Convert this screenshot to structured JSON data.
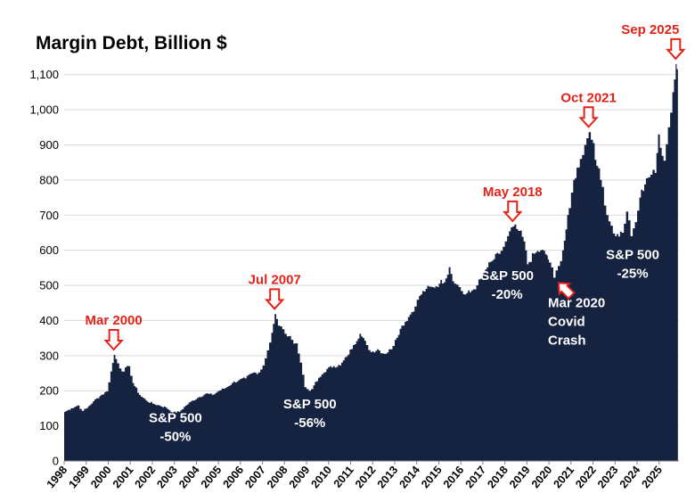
{
  "chart_data": {
    "type": "area",
    "title": "Margin Debt, Billion $",
    "xlabel": "",
    "ylabel": "",
    "xlim": [
      1998,
      2025.9
    ],
    "ylim": [
      0,
      1150
    ],
    "y_ticks": [
      0,
      100,
      200,
      300,
      400,
      500,
      600,
      700,
      800,
      900,
      1000,
      1100
    ],
    "y_tick_labels": [
      "0",
      "100",
      "200",
      "300",
      "400",
      "500",
      "600",
      "700",
      "800",
      "900",
      "1,000",
      "1,100"
    ],
    "x_ticks": [
      1998,
      1999,
      2000,
      2001,
      2002,
      2003,
      2004,
      2005,
      2006,
      2007,
      2008,
      2009,
      2010,
      2011,
      2012,
      2013,
      2014,
      2015,
      2016,
      2017,
      2018,
      2019,
      2020,
      2021,
      2022,
      2023,
      2024,
      2025
    ],
    "x_tick_labels": [
      "1998",
      "1999",
      "2000",
      "2001",
      "2002",
      "2003",
      "2004",
      "2005",
      "2006",
      "2007",
      "2008",
      "2009",
      "2010",
      "2011",
      "2012",
      "2013",
      "2014",
      "2015",
      "2016",
      "2017",
      "2018",
      "2019",
      "2020",
      "2021",
      "2022",
      "2023",
      "2024",
      "2025"
    ],
    "grid": true,
    "colors": {
      "fill": "#162340",
      "grid": "#d9d9d9",
      "peak_annotation": "#e2231a",
      "drawdown_text": "#ffffff",
      "axis": "#7f7f7f"
    },
    "series": [
      {
        "name": "Margin Debt",
        "points": [
          [
            1998.0,
            140
          ],
          [
            1998.3,
            150
          ],
          [
            1998.6,
            158
          ],
          [
            1998.8,
            143
          ],
          [
            1999.0,
            150
          ],
          [
            1999.3,
            170
          ],
          [
            1999.6,
            185
          ],
          [
            1999.9,
            198
          ],
          [
            2000.1,
            255
          ],
          [
            2000.25,
            302
          ],
          [
            2000.4,
            278
          ],
          [
            2000.6,
            255
          ],
          [
            2000.9,
            270
          ],
          [
            2001.1,
            222
          ],
          [
            2001.4,
            188
          ],
          [
            2001.7,
            172
          ],
          [
            2002.0,
            163
          ],
          [
            2002.3,
            158
          ],
          [
            2002.6,
            152
          ],
          [
            2002.9,
            138
          ],
          [
            2003.2,
            140
          ],
          [
            2003.5,
            158
          ],
          [
            2003.8,
            172
          ],
          [
            2004.1,
            182
          ],
          [
            2004.4,
            192
          ],
          [
            2004.7,
            188
          ],
          [
            2005.0,
            200
          ],
          [
            2005.3,
            208
          ],
          [
            2005.6,
            222
          ],
          [
            2005.9,
            230
          ],
          [
            2006.2,
            235
          ],
          [
            2006.5,
            250
          ],
          [
            2006.8,
            252
          ],
          [
            2007.0,
            272
          ],
          [
            2007.2,
            315
          ],
          [
            2007.4,
            365
          ],
          [
            2007.55,
            418
          ],
          [
            2007.7,
            385
          ],
          [
            2007.9,
            375
          ],
          [
            2008.1,
            355
          ],
          [
            2008.3,
            345
          ],
          [
            2008.5,
            335
          ],
          [
            2008.7,
            280
          ],
          [
            2008.9,
            210
          ],
          [
            2009.1,
            200
          ],
          [
            2009.3,
            215
          ],
          [
            2009.6,
            240
          ],
          [
            2009.9,
            262
          ],
          [
            2010.2,
            270
          ],
          [
            2010.5,
            272
          ],
          [
            2010.8,
            298
          ],
          [
            2011.1,
            330
          ],
          [
            2011.4,
            362
          ],
          [
            2011.7,
            330
          ],
          [
            2011.9,
            310
          ],
          [
            2012.2,
            318
          ],
          [
            2012.5,
            305
          ],
          [
            2012.8,
            318
          ],
          [
            2013.0,
            345
          ],
          [
            2013.3,
            385
          ],
          [
            2013.6,
            410
          ],
          [
            2013.9,
            440
          ],
          [
            2014.1,
            470
          ],
          [
            2014.4,
            490
          ],
          [
            2014.7,
            495
          ],
          [
            2015.0,
            505
          ],
          [
            2015.3,
            520
          ],
          [
            2015.45,
            552
          ],
          [
            2015.7,
            505
          ],
          [
            2015.9,
            495
          ],
          [
            2016.1,
            475
          ],
          [
            2016.4,
            480
          ],
          [
            2016.7,
            500
          ],
          [
            2016.9,
            520
          ],
          [
            2017.1,
            545
          ],
          [
            2017.4,
            570
          ],
          [
            2017.7,
            590
          ],
          [
            2017.9,
            610
          ],
          [
            2018.1,
            640
          ],
          [
            2018.35,
            668
          ],
          [
            2018.6,
            655
          ],
          [
            2018.85,
            625
          ],
          [
            2019.0,
            560
          ],
          [
            2019.3,
            590
          ],
          [
            2019.6,
            600
          ],
          [
            2019.9,
            585
          ],
          [
            2020.0,
            565
          ],
          [
            2020.2,
            522
          ],
          [
            2020.4,
            555
          ],
          [
            2020.6,
            600
          ],
          [
            2020.9,
            720
          ],
          [
            2021.1,
            800
          ],
          [
            2021.4,
            860
          ],
          [
            2021.6,
            900
          ],
          [
            2021.8,
            936
          ],
          [
            2022.0,
            905
          ],
          [
            2022.15,
            840
          ],
          [
            2022.4,
            780
          ],
          [
            2022.6,
            700
          ],
          [
            2022.8,
            670
          ],
          [
            2023.0,
            640
          ],
          [
            2023.3,
            650
          ],
          [
            2023.5,
            710
          ],
          [
            2023.7,
            640
          ],
          [
            2023.9,
            680
          ],
          [
            2024.1,
            750
          ],
          [
            2024.4,
            805
          ],
          [
            2024.6,
            815
          ],
          [
            2024.8,
            820
          ],
          [
            2024.95,
            930
          ],
          [
            2025.2,
            855
          ],
          [
            2025.4,
            950
          ],
          [
            2025.6,
            1050
          ],
          [
            2025.75,
            1130
          ],
          [
            2025.85,
            1100
          ]
        ]
      }
    ],
    "annotations": [
      {
        "id": "mar-2000",
        "kind": "peak",
        "text": "Mar 2000",
        "x": 2000.25,
        "y": 302
      },
      {
        "id": "jul-2007",
        "kind": "peak",
        "text": "Jul 2007",
        "x": 2007.55,
        "y": 418
      },
      {
        "id": "may-2018",
        "kind": "peak",
        "text": "May 2018",
        "x": 2018.35,
        "y": 668
      },
      {
        "id": "oct-2021",
        "kind": "peak",
        "text": "Oct 2021",
        "x": 2021.8,
        "y": 936
      },
      {
        "id": "sep-2025",
        "kind": "peak",
        "text": "Sep 2025",
        "x": 2025.75,
        "y": 1130
      },
      {
        "id": "mar-2020",
        "kind": "trough",
        "text_lines": [
          "Mar 2020",
          "Covid",
          "Crash"
        ],
        "x": 2020.2,
        "y": 522
      }
    ],
    "drawdown_labels": [
      {
        "id": "dd-2000",
        "lines": [
          "S&P 500",
          "-50%"
        ],
        "x": 2003.05,
        "y": 110,
        "color": "#ffffff"
      },
      {
        "id": "dd-2007",
        "lines": [
          "S&P 500",
          "-56%"
        ],
        "x": 2009.15,
        "y": 150,
        "color": "#ffffff"
      },
      {
        "id": "dd-2018",
        "lines": [
          "S&P 500",
          "-20%"
        ],
        "x": 2018.1,
        "y": 515,
        "color": "#ffffff"
      },
      {
        "id": "dd-2021",
        "lines": [
          "S&P 500",
          "-25%"
        ],
        "x": 2023.8,
        "y": 575,
        "color": "#ffffff"
      }
    ]
  }
}
